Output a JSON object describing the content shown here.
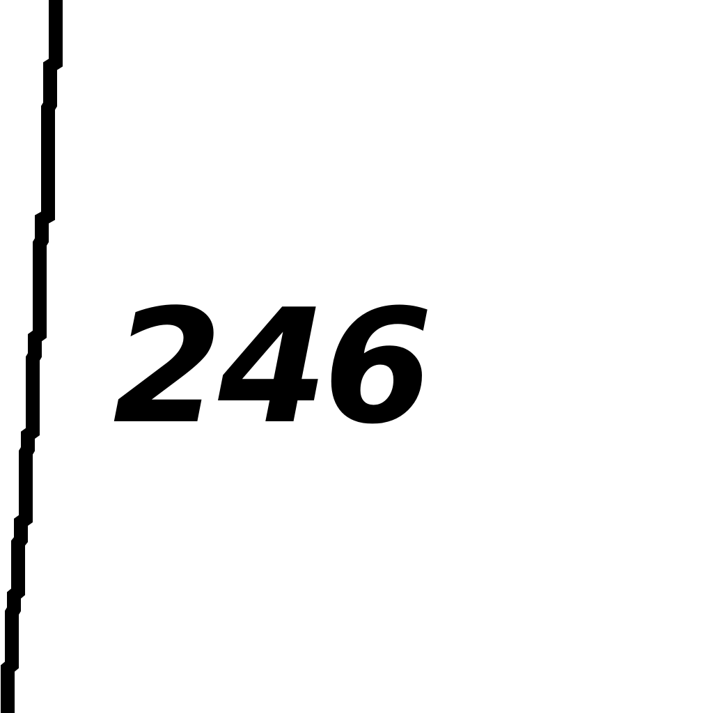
{
  "map": {
    "contour_label": "246",
    "colors": {
      "background": "#ffffff",
      "line": "#000000",
      "label": "#000000"
    }
  }
}
